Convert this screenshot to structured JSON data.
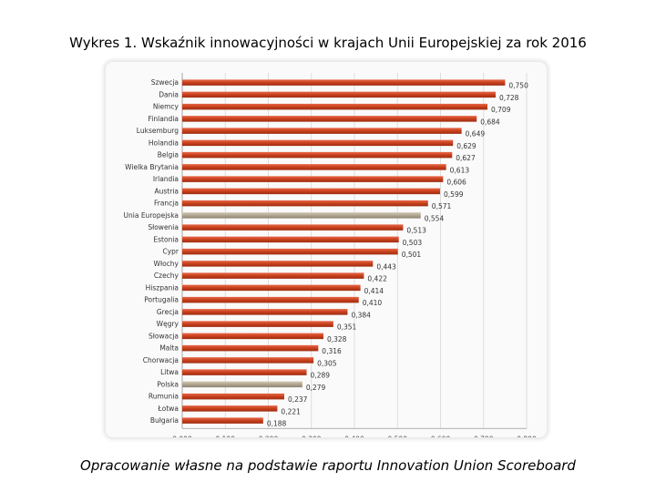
{
  "page": {
    "title": "Wykres 1. Wskaźnik innowacyjności w krajach Unii Europejskiej za rok 2016",
    "caption": "Opracowanie własne na podstawie raportu Innovation Union Scoreboard"
  },
  "colors": {
    "bar": "#c8401c",
    "bar_highlight": "#b0a590",
    "grid": "#d8d8d8"
  },
  "chart_data": {
    "type": "bar",
    "orientation": "horizontal",
    "title": "Wykres 1. Wskaźnik innowacyjności w krajach Unii Europejskiej za rok 2016",
    "xlim": [
      0,
      0.8
    ],
    "xticks": [
      0,
      0.1,
      0.2,
      0.3,
      0.4,
      0.5,
      0.6,
      0.7,
      0.8
    ],
    "xtick_labels": [
      "0,000",
      "0,100",
      "0,200",
      "0,300",
      "0,400",
      "0,500",
      "0,600",
      "0,700",
      "0,800"
    ],
    "grid": true,
    "categories": [
      "Szwecja",
      "Dania",
      "Niemcy",
      "Finlandia",
      "Luksemburg",
      "Holandia",
      "Belgia",
      "Wielka Brytania",
      "Irlandia",
      "Austria",
      "Francja",
      "Unia Europejska",
      "Słowenia",
      "Estonia",
      "Cypr",
      "Włochy",
      "Czechy",
      "Hiszpania",
      "Portugalia",
      "Grecja",
      "Węgry",
      "Słowacja",
      "Malta",
      "Chorwacja",
      "Litwa",
      "Polska",
      "Rumunia",
      "Łotwa",
      "Bułgaria"
    ],
    "values": [
      0.75,
      0.728,
      0.709,
      0.684,
      0.649,
      0.629,
      0.627,
      0.613,
      0.606,
      0.599,
      0.571,
      0.554,
      0.513,
      0.503,
      0.501,
      0.443,
      0.422,
      0.414,
      0.41,
      0.384,
      0.351,
      0.328,
      0.316,
      0.305,
      0.289,
      0.279,
      0.237,
      0.221,
      0.188
    ],
    "value_labels": [
      "0,750",
      "0,728",
      "0,709",
      "0,684",
      "0,649",
      "0,629",
      "0,627",
      "0,613",
      "0,606",
      "0,599",
      "0,571",
      "0,554",
      "0,513",
      "0,503",
      "0,501",
      "0,443",
      "0,422",
      "0,414",
      "0,410",
      "0,384",
      "0,351",
      "0,328",
      "0,316",
      "0,305",
      "0,289",
      "0,279",
      "0,237",
      "0,221",
      "0,188"
    ],
    "highlighted": [
      "Unia Europejska",
      "Polska"
    ]
  }
}
